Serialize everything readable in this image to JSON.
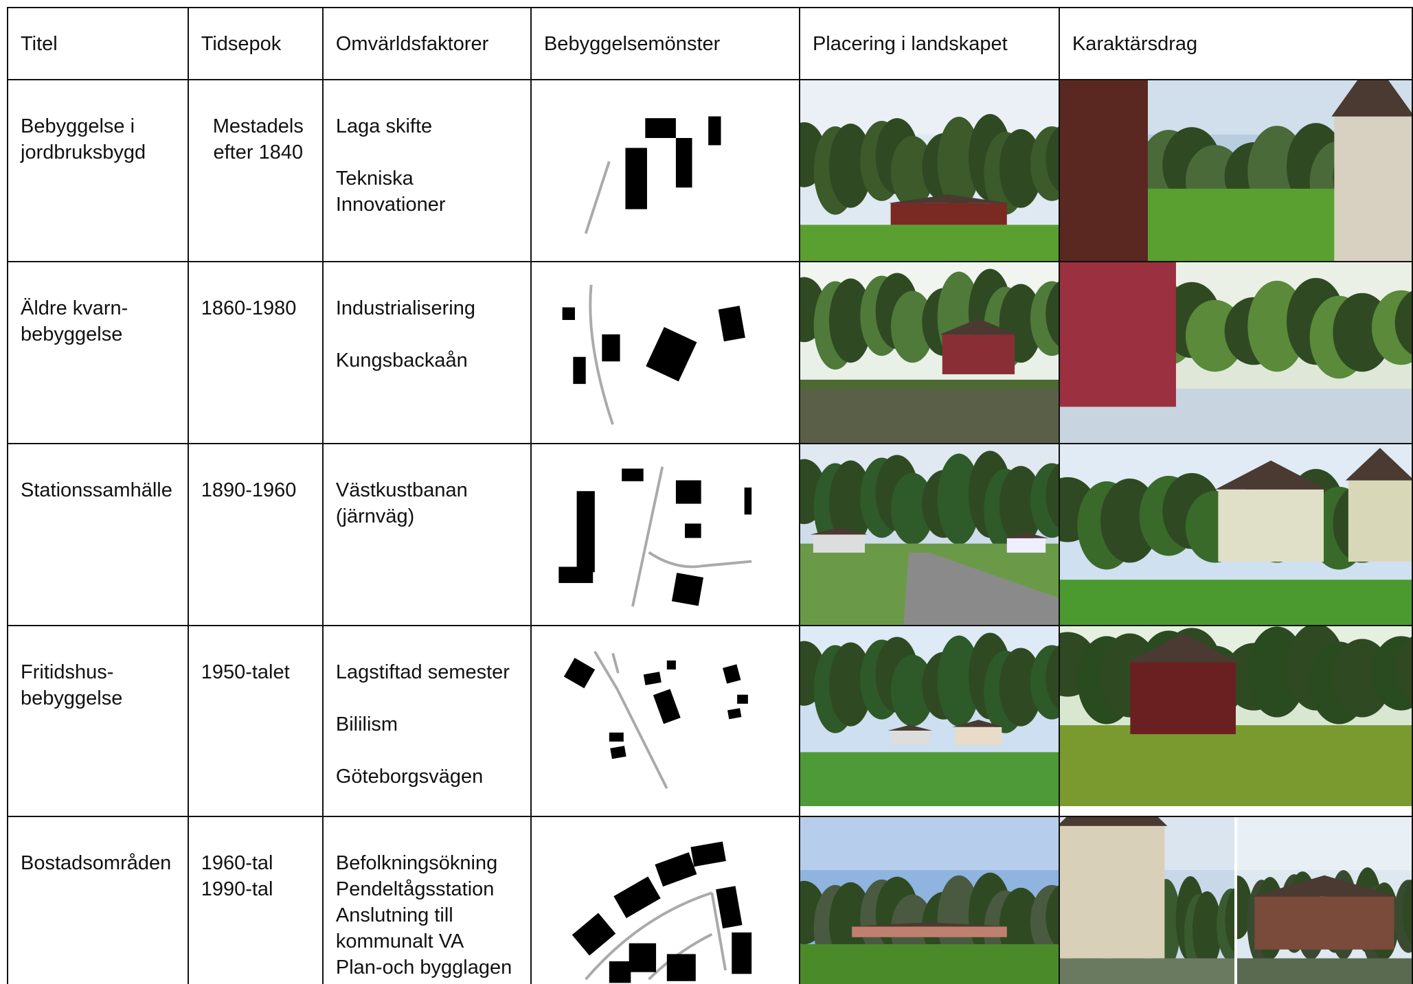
{
  "table": {
    "header": [
      "Titel",
      "Tidsepok",
      "Omvärldsfaktorer",
      "Bebyggelsemönster",
      "Placering i\nlandskapet",
      "Karaktärsdrag"
    ],
    "rows": [
      {
        "title": "Bebyggelse i\njordbruksbygd",
        "period": "Mestadels\nefter 1840",
        "factors": [
          "Laga skifte",
          "Tekniska\nInnovationer"
        ]
      },
      {
        "title": "Äldre kvarn-\nbebyggelse",
        "period": "1860-1980",
        "factors": [
          "Industrialisering",
          "Kungsbackaån"
        ]
      },
      {
        "title": "Stationssamhälle",
        "period": "1890-1960",
        "factors": [
          "Västkustbanan\n(järnväg)"
        ]
      },
      {
        "title": "Fritidshus-\nbebyggelse",
        "period": "1950-talet",
        "factors": [
          "Lagstiftad semester",
          "Bililism",
          "Göteborgsvägen"
        ]
      },
      {
        "title": "Bostadsområden",
        "period": "1960-tal\n1990-tal",
        "factors": [
          "Befolkningsökning\nPendeltågsstation\nAnslutning till\nkommunalt VA\nPlan-och bygglagen"
        ]
      }
    ]
  }
}
